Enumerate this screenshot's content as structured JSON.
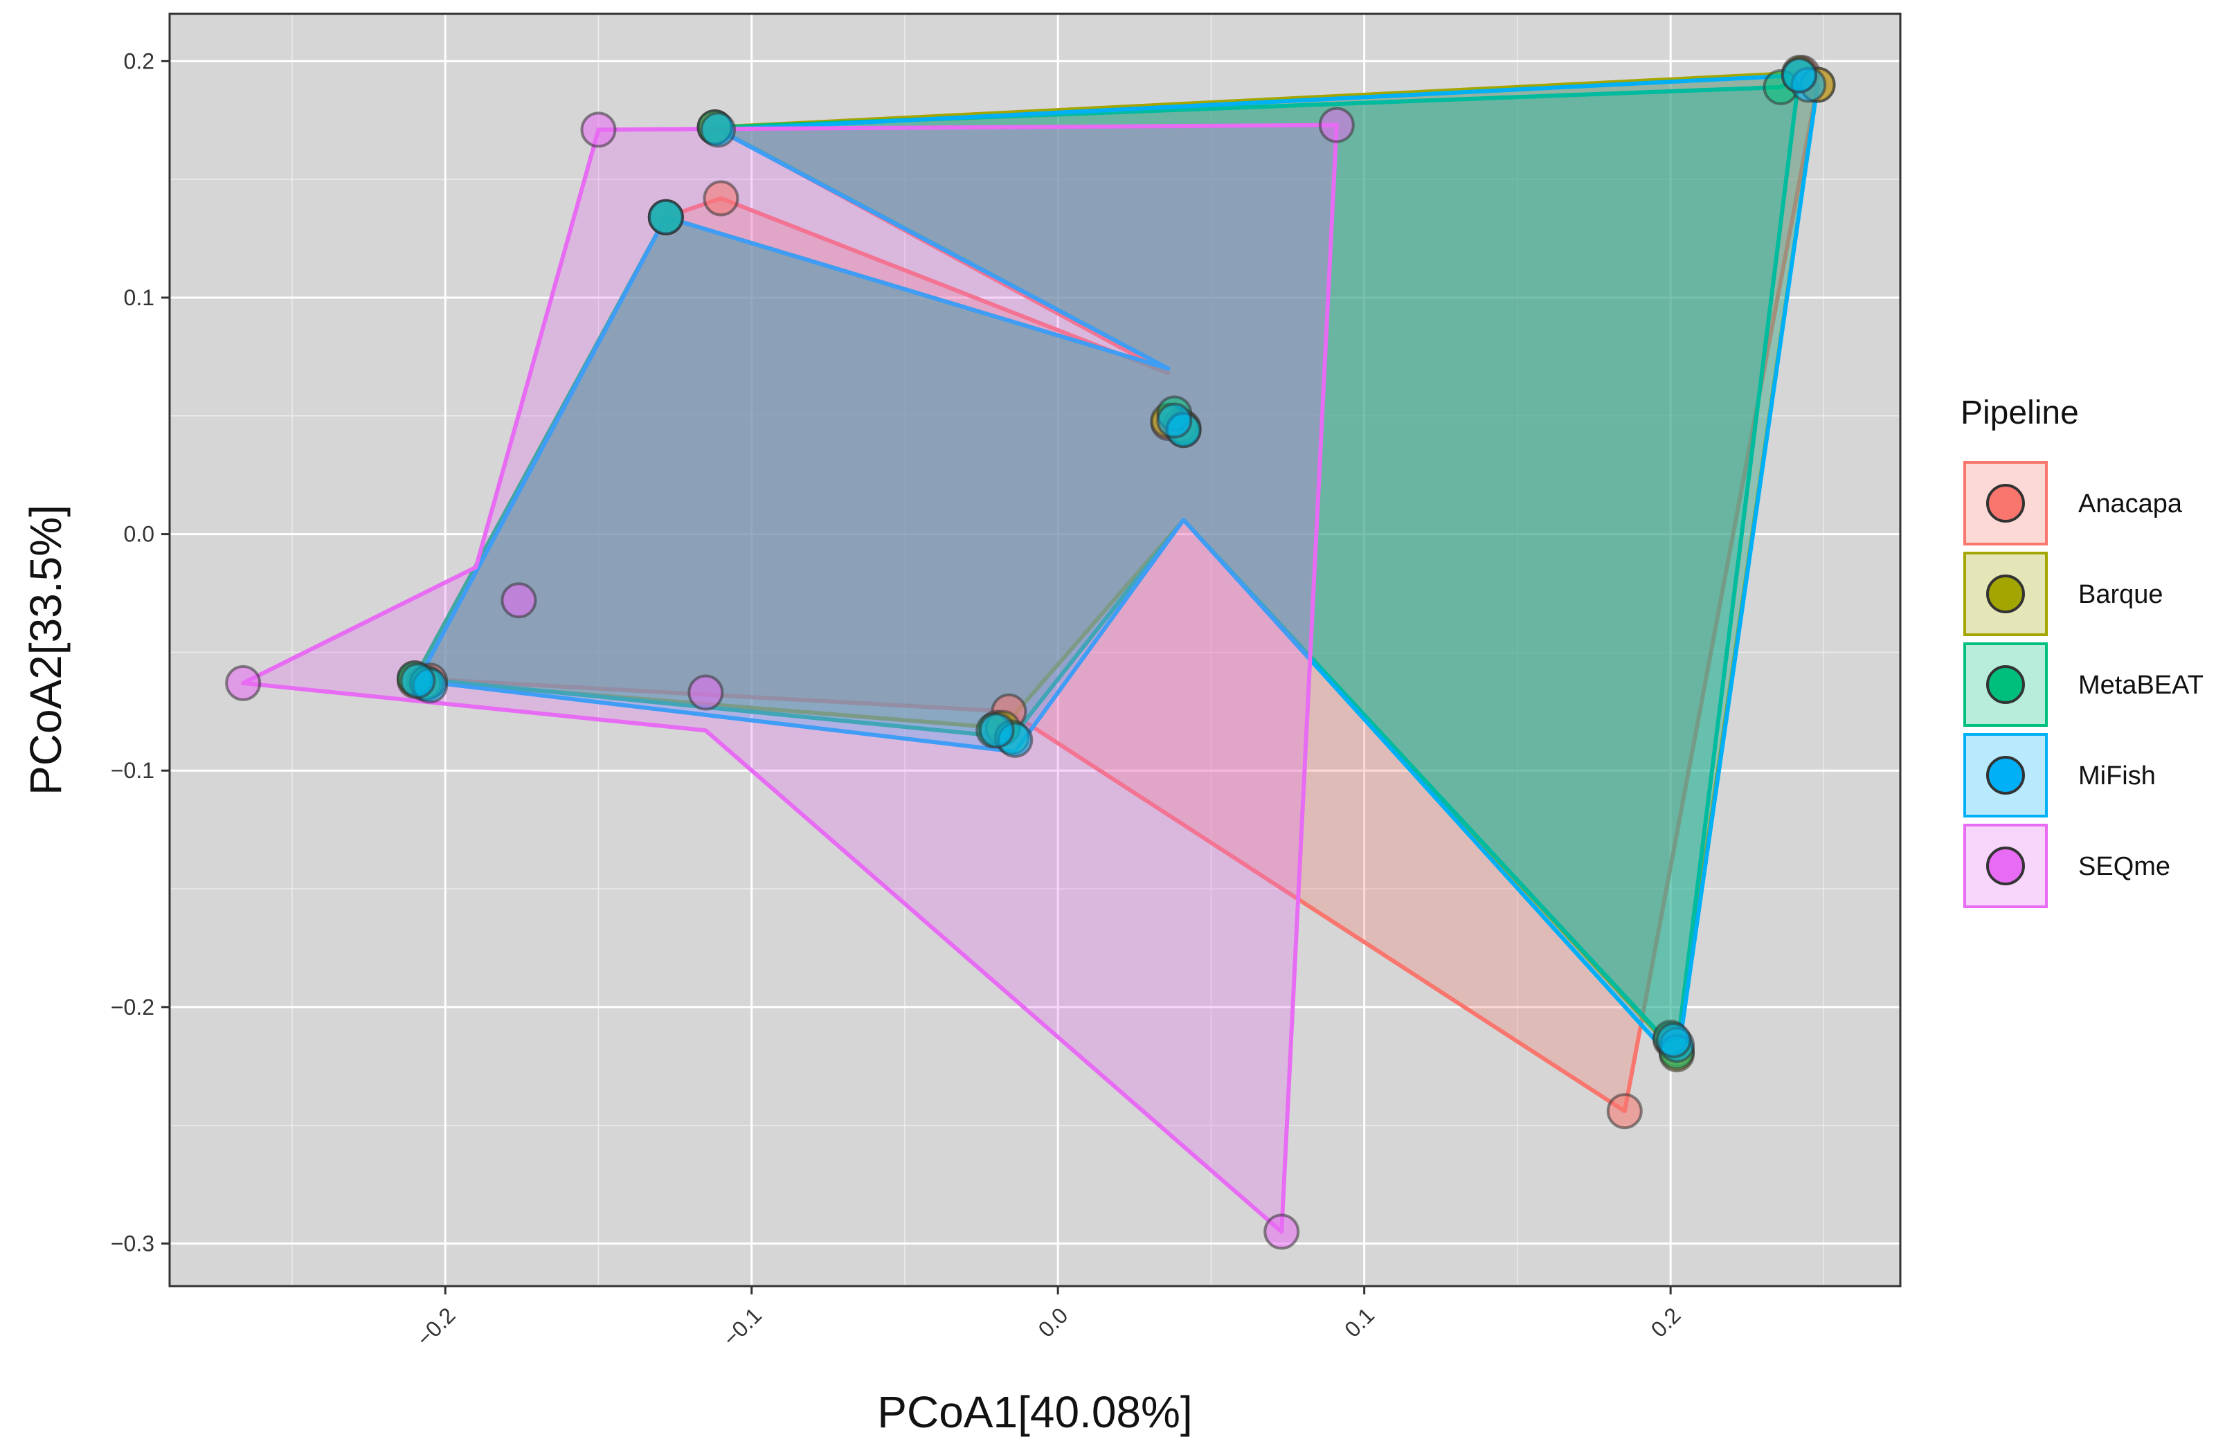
{
  "chart_data": {
    "type": "scatter",
    "xlabel": "PCoA1[40.08%]",
    "ylabel": "PCoA2[33.5%]",
    "xlim": [
      -0.29,
      0.275
    ],
    "ylim": [
      -0.318,
      0.22
    ],
    "xticks": [
      -0.2,
      -0.1,
      0.0,
      0.1,
      0.2
    ],
    "xtick_labels": [
      "−0.2",
      "−0.1",
      "0.0",
      "0.1",
      "0.2"
    ],
    "yticks": [
      0.2,
      0.1,
      0.0,
      -0.1,
      -0.2,
      -0.3
    ],
    "ytick_labels": [
      "0.2",
      "0.1",
      "0.0",
      "−0.1",
      "−0.2",
      "−0.3"
    ],
    "grid": true,
    "legend_title": "Pipeline",
    "legend_position": "right",
    "series": [
      {
        "name": "Anacapa",
        "color": "#F8766D",
        "points": [
          {
            "x": -0.112,
            "y": 0.172
          },
          {
            "x": -0.11,
            "y": 0.142
          },
          {
            "x": -0.128,
            "y": 0.134
          },
          {
            "x": 0.036,
            "y": 0.047
          },
          {
            "x": 0.04,
            "y": 0.046
          },
          {
            "x": -0.205,
            "y": -0.062
          },
          {
            "x": -0.21,
            "y": -0.061
          },
          {
            "x": -0.016,
            "y": -0.075
          },
          {
            "x": -0.02,
            "y": -0.082
          },
          {
            "x": 0.185,
            "y": -0.244
          },
          {
            "x": 0.2,
            "y": -0.214
          },
          {
            "x": 0.202,
            "y": -0.218
          },
          {
            "x": 0.243,
            "y": 0.195
          },
          {
            "x": 0.248,
            "y": 0.19
          }
        ],
        "hull": [
          [
            -0.112,
            0.172
          ],
          [
            0.243,
            0.195
          ],
          [
            0.248,
            0.19
          ],
          [
            0.185,
            -0.244
          ],
          [
            -0.016,
            -0.075
          ],
          [
            -0.21,
            -0.061
          ],
          [
            -0.128,
            0.134
          ],
          [
            -0.11,
            0.142
          ],
          [
            0.036,
            0.068
          ]
        ]
      },
      {
        "name": "Barque",
        "color": "#A3A500",
        "points": [
          {
            "x": -0.112,
            "y": 0.172
          },
          {
            "x": -0.128,
            "y": 0.134
          },
          {
            "x": 0.036,
            "y": 0.048
          },
          {
            "x": 0.041,
            "y": 0.045
          },
          {
            "x": -0.207,
            "y": -0.063
          },
          {
            "x": -0.21,
            "y": -0.062
          },
          {
            "x": -0.018,
            "y": -0.082
          },
          {
            "x": 0.201,
            "y": -0.215
          },
          {
            "x": 0.202,
            "y": -0.22
          },
          {
            "x": 0.242,
            "y": 0.195
          },
          {
            "x": 0.248,
            "y": 0.19
          }
        ],
        "hull": [
          [
            -0.112,
            0.172
          ],
          [
            0.242,
            0.195
          ],
          [
            0.248,
            0.19
          ],
          [
            0.202,
            -0.22
          ],
          [
            0.041,
            0.006
          ],
          [
            -0.018,
            -0.082
          ],
          [
            -0.21,
            -0.062
          ],
          [
            -0.128,
            0.134
          ],
          [
            0.036,
            0.07
          ]
        ]
      },
      {
        "name": "MetaBEAT",
        "color": "#00BF7D",
        "points": [
          {
            "x": -0.112,
            "y": 0.172
          },
          {
            "x": -0.128,
            "y": 0.134
          },
          {
            "x": 0.038,
            "y": 0.051
          },
          {
            "x": 0.041,
            "y": 0.044
          },
          {
            "x": -0.21,
            "y": -0.061
          },
          {
            "x": -0.206,
            "y": -0.063
          },
          {
            "x": -0.021,
            "y": -0.083
          },
          {
            "x": -0.015,
            "y": -0.086
          },
          {
            "x": 0.2,
            "y": -0.213
          },
          {
            "x": 0.202,
            "y": -0.219
          },
          {
            "x": 0.236,
            "y": 0.189
          },
          {
            "x": 0.242,
            "y": 0.194
          }
        ],
        "hull": [
          [
            -0.112,
            0.172
          ],
          [
            0.236,
            0.189
          ],
          [
            0.242,
            0.194
          ],
          [
            0.202,
            -0.219
          ],
          [
            0.041,
            0.006
          ],
          [
            -0.015,
            -0.086
          ],
          [
            -0.21,
            -0.061
          ],
          [
            -0.128,
            0.134
          ],
          [
            0.036,
            0.07
          ]
        ]
      },
      {
        "name": "MiFish",
        "color": "#00B0F6",
        "points": [
          {
            "x": -0.111,
            "y": 0.171
          },
          {
            "x": -0.128,
            "y": 0.134
          },
          {
            "x": 0.041,
            "y": 0.044
          },
          {
            "x": 0.038,
            "y": 0.048
          },
          {
            "x": -0.205,
            "y": -0.064
          },
          {
            "x": -0.209,
            "y": -0.062
          },
          {
            "x": -0.014,
            "y": -0.087
          },
          {
            "x": -0.02,
            "y": -0.083
          },
          {
            "x": 0.202,
            "y": -0.216
          },
          {
            "x": 0.201,
            "y": -0.214
          },
          {
            "x": 0.245,
            "y": 0.19
          },
          {
            "x": 0.242,
            "y": 0.194
          }
        ],
        "hull": [
          [
            -0.111,
            0.171
          ],
          [
            0.242,
            0.194
          ],
          [
            0.248,
            0.19
          ],
          [
            0.202,
            -0.224
          ],
          [
            0.041,
            0.006
          ],
          [
            -0.014,
            -0.092
          ],
          [
            -0.209,
            -0.062
          ],
          [
            -0.128,
            0.134
          ],
          [
            0.036,
            0.07
          ]
        ]
      },
      {
        "name": "SEQme",
        "color": "#E76BF3",
        "points": [
          {
            "x": -0.15,
            "y": 0.171
          },
          {
            "x": 0.091,
            "y": 0.173
          },
          {
            "x": -0.176,
            "y": -0.028
          },
          {
            "x": -0.266,
            "y": -0.063
          },
          {
            "x": -0.115,
            "y": -0.067
          },
          {
            "x": 0.073,
            "y": -0.295
          }
        ],
        "hull": [
          [
            -0.15,
            0.171
          ],
          [
            0.091,
            0.173
          ],
          [
            0.073,
            -0.295
          ],
          [
            -0.115,
            -0.083
          ],
          [
            -0.266,
            -0.063
          ],
          [
            -0.19,
            -0.014
          ]
        ]
      }
    ]
  }
}
